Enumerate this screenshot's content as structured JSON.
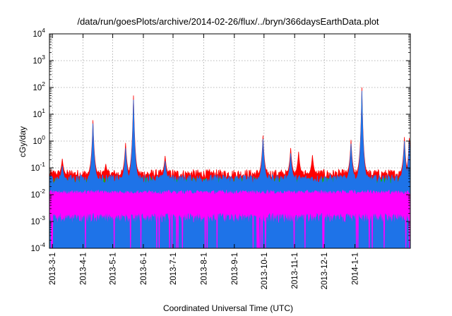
{
  "chart_data": {
    "type": "line",
    "title": "/data/run/goesPlots/archive/2014-02-26/flux/../bryn/366daysEarthData.plot",
    "xlabel": "Coordinated Universal Time (UTC)",
    "ylabel": "cGy/day",
    "yscale": "log",
    "ylim": [
      0.0001,
      10000
    ],
    "xlim": [
      "2013-02-26",
      "2014-02-26"
    ],
    "grid": true,
    "legend": "none",
    "x_ticks": [
      "2013-3-1",
      "2013-4-1",
      "2013-5-1",
      "2013-6-1",
      "2013-7-1",
      "2013-8-1",
      "2013-9-1",
      "2013-10-1",
      "2013-11-1",
      "2013-12-1",
      "2014-1-1"
    ],
    "y_ticks": [
      {
        "base": "10",
        "exp": "-4",
        "value": 0.0001
      },
      {
        "base": "10",
        "exp": "-3",
        "value": 0.001
      },
      {
        "base": "10",
        "exp": "-2",
        "value": 0.01
      },
      {
        "base": "10",
        "exp": "-1",
        "value": 0.1
      },
      {
        "base": "10",
        "exp": "0",
        "value": 1
      },
      {
        "base": "10",
        "exp": "1",
        "value": 10
      },
      {
        "base": "10",
        "exp": "2",
        "value": 100
      },
      {
        "base": "10",
        "exp": "3",
        "value": 1000
      },
      {
        "base": "10",
        "exp": "4",
        "value": 10000
      }
    ],
    "series": [
      {
        "color": "#ff0000",
        "baseline": 0.05,
        "peaks": [
          [
            "2013-03-11",
            0.22
          ],
          [
            "2013-04-11",
            6.0
          ],
          [
            "2013-04-24",
            0.14
          ],
          [
            "2013-05-14",
            0.85
          ],
          [
            "2013-05-22",
            50
          ],
          [
            "2013-06-23",
            0.28
          ],
          [
            "2013-09-30",
            1.6
          ],
          [
            "2013-10-28",
            0.55
          ],
          [
            "2013-11-05",
            0.4
          ],
          [
            "2013-11-19",
            0.3
          ],
          [
            "2013-12-28",
            1.1
          ],
          [
            "2014-01-08",
            100
          ],
          [
            "2014-02-20",
            1.4
          ],
          [
            "2014-02-25",
            1.3
          ]
        ]
      },
      {
        "color": "#00c000",
        "baseline": 0.025,
        "peaks": [
          [
            "2013-04-11",
            0.6
          ],
          [
            "2013-05-22",
            12
          ],
          [
            "2013-09-30",
            0.25
          ],
          [
            "2014-01-08",
            40
          ],
          [
            "2014-02-25",
            0.5
          ]
        ]
      },
      {
        "color": "#1e73e8",
        "baseline": 0.032,
        "peaks": [
          [
            "2013-03-11",
            0.12
          ],
          [
            "2013-04-11",
            4.5
          ],
          [
            "2013-05-14",
            0.55
          ],
          [
            "2013-05-22",
            35
          ],
          [
            "2013-06-23",
            0.18
          ],
          [
            "2013-09-30",
            1.2
          ],
          [
            "2013-10-28",
            0.35
          ],
          [
            "2013-12-28",
            0.8
          ],
          [
            "2014-01-08",
            75
          ],
          [
            "2014-02-20",
            1.0
          ],
          [
            "2014-02-25",
            0.95
          ]
        ]
      },
      {
        "color": "#ff00ff",
        "band": [
          0.0015,
          0.015
        ],
        "dropout_floor": 0.0001
      }
    ]
  }
}
